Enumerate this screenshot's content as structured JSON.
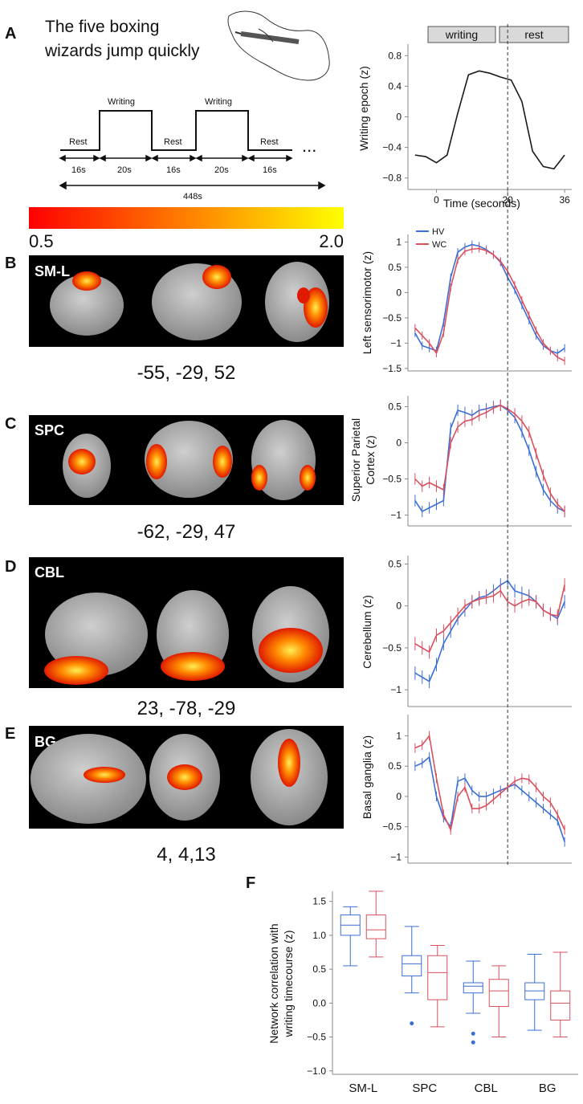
{
  "panels": {
    "a": "A",
    "b": "B",
    "c": "C",
    "d": "D",
    "e": "E",
    "f": "F"
  },
  "paradigm": {
    "sentence_line1": "The five boxing",
    "sentence_line2": "wizards jump quickly",
    "rest_label": "Rest",
    "writing_label": "Writing",
    "dur_rest": "16s",
    "dur_write": "20s",
    "total": "448s",
    "ellipsis": "..."
  },
  "epoch_chart": {
    "ylabel": "Writing epoch (z)",
    "xlabel": "Time (seconds)",
    "writing_box": "writing",
    "rest_box": "rest"
  },
  "colorbar": {
    "min_label": "0.5",
    "max_label": "2.0",
    "colors": [
      "#ff0000",
      "#ffff00"
    ]
  },
  "networks": [
    {
      "key": "SM-L",
      "label": "SM-L",
      "coords": "-55, -29, 52",
      "ylabel": "Left sensorimotor (z)"
    },
    {
      "key": "SPC",
      "label": "SPC",
      "coords": "-62, -29, 47",
      "ylabel_line1": "Superior Parietal",
      "ylabel_line2": "Cortex (z)"
    },
    {
      "key": "CBL",
      "label": "CBL",
      "coords": "23, -78, -29",
      "ylabel": "Cerebellum (z)"
    },
    {
      "key": "BG",
      "label": "BG",
      "coords": "4, 4,13",
      "ylabel": "Basal ganglia (z)"
    }
  ],
  "legend": {
    "hv": "HV",
    "wc": "WC"
  },
  "box_chart_labels": {
    "ylabel_line1": "Network correlation with",
    "ylabel_line2": "writing timecourse (z)"
  },
  "colors": {
    "hv": "#3b6fd6",
    "wc": "#d9505e",
    "line": "#1a1a1a"
  },
  "chart_data": [
    {
      "type": "line",
      "id": "writing-epoch",
      "x": [
        -6,
        -3,
        0,
        3,
        6,
        9,
        12,
        15,
        18,
        21,
        24,
        27,
        30,
        33,
        36
      ],
      "series": [
        {
          "values": [
            -0.5,
            -0.52,
            -0.6,
            -0.5,
            0.05,
            0.55,
            0.6,
            0.57,
            0.52,
            0.48,
            0.2,
            -0.45,
            -0.65,
            -0.68,
            -0.5
          ]
        }
      ],
      "xticks": [
        0,
        20,
        36
      ],
      "yticks": [
        -0.8,
        -0.4,
        0,
        0.4,
        0.8
      ],
      "xlim": [
        -8,
        38
      ],
      "ylim": [
        -0.95,
        0.95
      ],
      "xlabel": "Time (seconds)",
      "ylabel": "Writing epoch (z)"
    },
    {
      "type": "line",
      "id": "sm-l",
      "x": [
        -6,
        -4,
        -2,
        0,
        2,
        4,
        6,
        8,
        10,
        12,
        14,
        16,
        18,
        20,
        22,
        24,
        26,
        28,
        30,
        32,
        34,
        36
      ],
      "series": [
        {
          "name": "HV",
          "values": [
            -0.8,
            -1.05,
            -1.1,
            -1.15,
            -0.6,
            0.3,
            0.8,
            0.9,
            0.95,
            0.92,
            0.85,
            0.75,
            0.6,
            0.3,
            0.05,
            -0.25,
            -0.55,
            -0.85,
            -1.05,
            -1.15,
            -1.2,
            -1.1
          ]
        },
        {
          "name": "WC",
          "values": [
            -0.7,
            -0.85,
            -1.0,
            -1.2,
            -0.8,
            0.1,
            0.65,
            0.82,
            0.86,
            0.87,
            0.83,
            0.75,
            0.62,
            0.42,
            0.15,
            -0.15,
            -0.45,
            -0.75,
            -1.0,
            -1.15,
            -1.28,
            -1.35
          ]
        }
      ],
      "yticks": [
        -1.5,
        -1.0,
        -0.5,
        0,
        0.5,
        1.0
      ],
      "ylim": [
        -1.55,
        1.15
      ],
      "xlim": [
        -8,
        38
      ],
      "ylabel": "Left sensorimotor (z)"
    },
    {
      "type": "line",
      "id": "spc",
      "x": [
        -6,
        -4,
        -2,
        0,
        2,
        4,
        6,
        8,
        10,
        12,
        14,
        16,
        18,
        20,
        22,
        24,
        26,
        28,
        30,
        32,
        34,
        36
      ],
      "series": [
        {
          "name": "HV",
          "values": [
            -0.8,
            -0.95,
            -0.9,
            -0.85,
            -0.8,
            0.2,
            0.45,
            0.42,
            0.38,
            0.45,
            0.47,
            0.5,
            0.52,
            0.45,
            0.35,
            0.15,
            -0.1,
            -0.4,
            -0.65,
            -0.8,
            -0.9,
            -0.95
          ]
        },
        {
          "name": "WC",
          "values": [
            -0.5,
            -0.6,
            -0.55,
            -0.6,
            -0.65,
            0.0,
            0.22,
            0.3,
            0.32,
            0.38,
            0.42,
            0.48,
            0.52,
            0.47,
            0.4,
            0.3,
            0.15,
            -0.15,
            -0.45,
            -0.7,
            -0.85,
            -0.95
          ]
        }
      ],
      "yticks": [
        -1.0,
        -0.5,
        0,
        0.5
      ],
      "ylim": [
        -1.15,
        0.65
      ],
      "xlim": [
        -8,
        38
      ],
      "ylabel": "Superior Parietal Cortex (z)"
    },
    {
      "type": "line",
      "id": "cbl",
      "x": [
        -6,
        -4,
        -2,
        0,
        2,
        4,
        6,
        8,
        10,
        12,
        14,
        16,
        18,
        20,
        22,
        24,
        26,
        28,
        30,
        32,
        34,
        36
      ],
      "series": [
        {
          "name": "HV",
          "values": [
            -0.8,
            -0.85,
            -0.9,
            -0.7,
            -0.45,
            -0.3,
            -0.15,
            -0.05,
            0.05,
            0.1,
            0.12,
            0.18,
            0.25,
            0.3,
            0.18,
            0.15,
            0.12,
            0.05,
            -0.05,
            -0.1,
            -0.15,
            0.05
          ]
        },
        {
          "name": "WC",
          "values": [
            -0.45,
            -0.5,
            -0.55,
            -0.35,
            -0.3,
            -0.2,
            -0.1,
            0.0,
            0.05,
            0.08,
            0.1,
            0.12,
            0.18,
            0.05,
            0.0,
            0.05,
            0.08,
            0.05,
            -0.05,
            -0.1,
            -0.12,
            0.25
          ]
        }
      ],
      "yticks": [
        -1.0,
        -0.5,
        0,
        0.5
      ],
      "ylim": [
        -1.2,
        0.6
      ],
      "xlim": [
        -8,
        38
      ],
      "ylabel": "Cerebellum (z)"
    },
    {
      "type": "line",
      "id": "bg",
      "x": [
        -6,
        -4,
        -2,
        0,
        2,
        4,
        6,
        8,
        10,
        12,
        14,
        16,
        18,
        20,
        22,
        24,
        26,
        28,
        30,
        32,
        34,
        36
      ],
      "series": [
        {
          "name": "HV",
          "values": [
            0.5,
            0.55,
            0.65,
            0.0,
            -0.35,
            -0.5,
            0.25,
            0.3,
            0.1,
            0.0,
            0.0,
            0.05,
            0.1,
            0.15,
            0.2,
            0.1,
            0.0,
            -0.1,
            -0.2,
            -0.3,
            -0.4,
            -0.75
          ]
        },
        {
          "name": "WC",
          "values": [
            0.8,
            0.85,
            1.0,
            0.3,
            -0.3,
            -0.55,
            0.0,
            0.15,
            -0.2,
            -0.2,
            -0.15,
            -0.05,
            0.05,
            0.15,
            0.25,
            0.3,
            0.28,
            0.15,
            0.0,
            -0.1,
            -0.3,
            -0.55
          ]
        }
      ],
      "yticks": [
        -1.0,
        -0.5,
        0,
        0.5,
        1.0
      ],
      "ylim": [
        -1.1,
        1.35
      ],
      "xlim": [
        -8,
        38
      ],
      "ylabel": "Basal ganglia (z)"
    },
    {
      "type": "box",
      "id": "network-correlation",
      "categories": [
        "SM-L",
        "SPC",
        "CBL",
        "BG"
      ],
      "series": [
        {
          "name": "HV",
          "boxes": [
            {
              "min": 0.55,
              "q1": 1.0,
              "median": 1.15,
              "q3": 1.3,
              "max": 1.42,
              "outliers": []
            },
            {
              "min": 0.15,
              "q1": 0.4,
              "median": 0.58,
              "q3": 0.7,
              "max": 1.13,
              "outliers": [
                -0.3
              ]
            },
            {
              "min": -0.15,
              "q1": 0.15,
              "median": 0.25,
              "q3": 0.3,
              "max": 0.62,
              "outliers": [
                -0.45,
                -0.58
              ]
            },
            {
              "min": -0.4,
              "q1": 0.05,
              "median": 0.18,
              "q3": 0.3,
              "max": 0.72,
              "outliers": []
            }
          ]
        },
        {
          "name": "WC",
          "boxes": [
            {
              "min": 0.68,
              "q1": 0.95,
              "median": 1.08,
              "q3": 1.3,
              "max": 1.65,
              "outliers": []
            },
            {
              "min": -0.35,
              "q1": 0.05,
              "median": 0.45,
              "q3": 0.7,
              "max": 0.85,
              "outliers": []
            },
            {
              "min": -0.5,
              "q1": -0.05,
              "median": 0.18,
              "q3": 0.35,
              "max": 0.55,
              "outliers": []
            },
            {
              "min": -0.5,
              "q1": -0.25,
              "median": 0.0,
              "q3": 0.18,
              "max": 0.75,
              "outliers": []
            }
          ]
        }
      ],
      "yticks": [
        -1.0,
        -0.5,
        0,
        0.5,
        1.0,
        1.5
      ],
      "ylim": [
        -1.05,
        1.65
      ],
      "ylabel": "Network correlation with writing timecourse (z)"
    }
  ]
}
